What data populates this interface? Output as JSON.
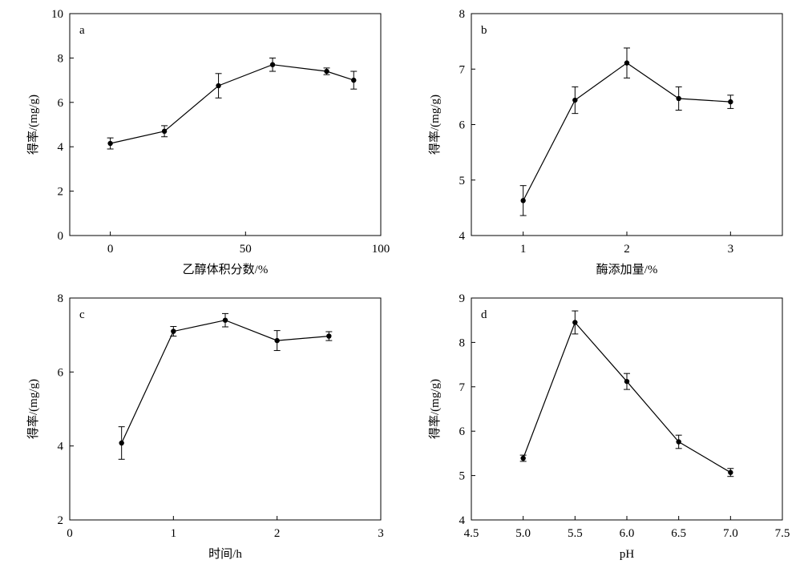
{
  "chart_data": [
    {
      "type": "line",
      "panel_label": "a",
      "xlabel": "乙醇体积分数/%",
      "ylabel": "得率/(mg/g)",
      "xlim": [
        -15,
        100
      ],
      "ylim": [
        0,
        10
      ],
      "xticks": [
        0,
        50,
        100
      ],
      "yticks": [
        0,
        2,
        4,
        6,
        8,
        10
      ],
      "x": [
        0,
        20,
        40,
        60,
        80,
        90
      ],
      "y": [
        4.15,
        4.7,
        6.75,
        7.7,
        7.4,
        7.0
      ],
      "error": [
        0.25,
        0.25,
        0.55,
        0.3,
        0.15,
        0.4
      ],
      "grid": false,
      "color": "#000000"
    },
    {
      "type": "line",
      "panel_label": "b",
      "xlabel": "酶添加量/%",
      "ylabel": "得率/(mg/g)",
      "xlim": [
        0.5,
        3.5
      ],
      "ylim": [
        4,
        8
      ],
      "xticks": [
        1,
        2,
        3
      ],
      "yticks": [
        4,
        5,
        6,
        7,
        8
      ],
      "x": [
        1,
        1.5,
        2,
        2.5,
        3
      ],
      "y": [
        4.63,
        6.44,
        7.11,
        6.47,
        6.41
      ],
      "error": [
        0.27,
        0.24,
        0.27,
        0.21,
        0.12
      ],
      "grid": false,
      "color": "#000000"
    },
    {
      "type": "line",
      "panel_label": "c",
      "xlabel": "时间/h",
      "ylabel": "得率/(mg/g)",
      "xlim": [
        0,
        3
      ],
      "ylim": [
        2,
        8
      ],
      "xticks": [
        0,
        1,
        2,
        3
      ],
      "yticks": [
        2,
        4,
        6,
        8
      ],
      "x": [
        0.5,
        1,
        1.5,
        2,
        2.5
      ],
      "y": [
        4.08,
        7.1,
        7.4,
        6.85,
        6.97
      ],
      "error": [
        0.44,
        0.13,
        0.18,
        0.27,
        0.12
      ],
      "grid": false,
      "color": "#000000"
    },
    {
      "type": "line",
      "panel_label": "d",
      "xlabel": "pH",
      "ylabel": "得率/(mg/g)",
      "xlim": [
        4.5,
        7.5
      ],
      "ylim": [
        4,
        9
      ],
      "xticks": [
        4.5,
        5.0,
        5.5,
        6.0,
        6.5,
        7.0,
        7.5
      ],
      "xtick_labels": [
        "4.5",
        "5.0",
        "5.5",
        "6.0",
        "6.5",
        "7.0",
        "7.5"
      ],
      "yticks": [
        4,
        5,
        6,
        7,
        8,
        9
      ],
      "x": [
        5.0,
        5.5,
        6.0,
        6.5,
        7.0
      ],
      "y": [
        5.39,
        8.45,
        7.12,
        5.76,
        5.07
      ],
      "error": [
        0.07,
        0.26,
        0.18,
        0.15,
        0.09
      ],
      "grid": false,
      "color": "#000000"
    }
  ]
}
